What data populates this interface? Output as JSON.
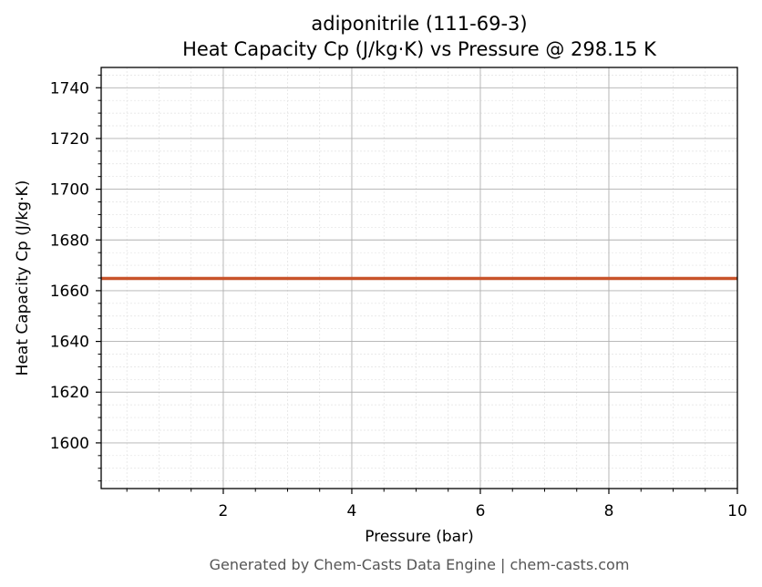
{
  "chart_data": {
    "type": "line",
    "title": "adiponitrile (111-69-3)",
    "subtitle": "Heat Capacity Cp (J/kg·K) vs Pressure @ 298.15 K",
    "xlabel": "Pressure (bar)",
    "ylabel": "Heat Capacity Cp (J/kg·K)",
    "xlim": [
      0.1,
      10
    ],
    "ylim": [
      1582,
      1748
    ],
    "x_ticks": [
      2,
      4,
      6,
      8,
      10
    ],
    "y_ticks": [
      1600,
      1620,
      1640,
      1660,
      1680,
      1700,
      1720,
      1740
    ],
    "grid": true,
    "series": [
      {
        "color": "#c8532a",
        "x": [
          0.1,
          10
        ],
        "y": [
          1664.8,
          1664.8
        ]
      }
    ]
  },
  "footer": "Generated by Chem-Casts Data Engine | chem-casts.com"
}
